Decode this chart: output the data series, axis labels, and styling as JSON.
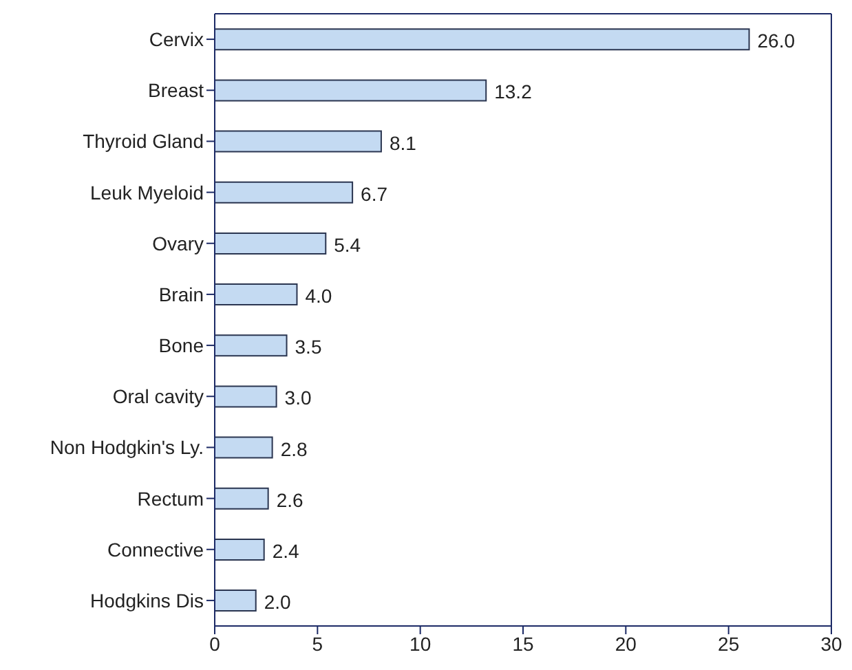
{
  "chart_data": {
    "type": "bar",
    "orientation": "horizontal",
    "categories": [
      "Cervix",
      "Breast",
      "Thyroid Gland",
      "Leuk Myeloid",
      "Ovary",
      "Brain",
      "Bone",
      "Oral cavity",
      "Non Hodgkin's Ly.",
      "Rectum",
      "Connective",
      "Hodgkins Dis"
    ],
    "values": [
      26.0,
      13.2,
      8.1,
      6.7,
      5.4,
      4.0,
      3.5,
      3.0,
      2.8,
      2.6,
      2.4,
      2.0
    ],
    "value_labels": [
      "26.0",
      "13.2",
      "8.1",
      "6.7",
      "5.4",
      "4.0",
      "3.5",
      "3.0",
      "2.8",
      "2.6",
      "2.4",
      "2.0"
    ],
    "color": "#c4daf2",
    "xlim": [
      0,
      30
    ],
    "xticks": [
      0,
      5,
      10,
      15,
      20,
      25,
      30
    ],
    "grid": false
  }
}
